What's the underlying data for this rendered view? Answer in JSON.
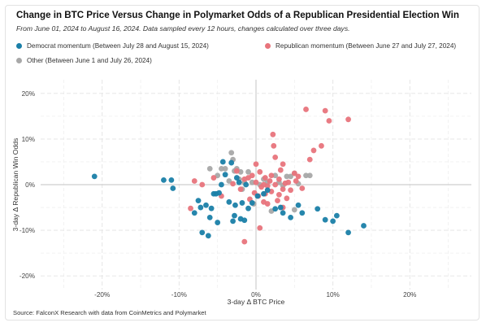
{
  "chart_data": {
    "type": "scatter",
    "title": "Change in BTC Price Versus Change in Polymarket Odds of a Republican Presidential Election Win",
    "subtitle": "From June 01, 2024 to August 16, 2024. Data sampled every 12 hours, changes calculated over three days.",
    "xlabel": "3-day Δ BTC Price",
    "ylabel": "3-day Δ Republican Win Odds",
    "source": "Source: FalconX Research with data from CoinMetrics and Polymarket",
    "xlim": [
      -28,
      28
    ],
    "ylim": [
      -23,
      23
    ],
    "x_ticks": [
      -20,
      -10,
      0,
      10,
      20
    ],
    "y_ticks": [
      -20,
      -10,
      0,
      10,
      20
    ],
    "x_tick_labels": [
      "-20%",
      "-10%",
      "0%",
      "10%",
      "20%"
    ],
    "y_tick_labels": [
      "-20%",
      "-10%",
      "0%",
      "10%",
      "20%"
    ],
    "grid": true,
    "legend_position": "top",
    "series": [
      {
        "name": "Democrat momentum (Between July 28 and August 15, 2024)",
        "color": "#1a7fa8",
        "points": [
          [
            -21,
            1.8
          ],
          [
            -12,
            1
          ],
          [
            -11,
            1
          ],
          [
            -10.8,
            -0.8
          ],
          [
            -8,
            -6.2
          ],
          [
            -7.5,
            -3.5
          ],
          [
            -7.2,
            -5
          ],
          [
            -7,
            -10.5
          ],
          [
            -6.5,
            -4.5
          ],
          [
            -6.2,
            -11.2
          ],
          [
            -6,
            -7.2
          ],
          [
            -5.8,
            -5.2
          ],
          [
            -5.5,
            -2
          ],
          [
            -5.2,
            -2
          ],
          [
            -5,
            -8.3
          ],
          [
            -4.8,
            -1.8
          ],
          [
            -4.5,
            0
          ],
          [
            -4.3,
            5
          ],
          [
            -4,
            2.2
          ],
          [
            -3.5,
            -3.8
          ],
          [
            -3.2,
            4.8
          ],
          [
            -3,
            -8
          ],
          [
            -2.8,
            -6.8
          ],
          [
            -2.7,
            -4.5
          ],
          [
            -2.5,
            1.5
          ],
          [
            -2.2,
            0.5
          ],
          [
            -2,
            -7.5
          ],
          [
            -1.8,
            -4
          ],
          [
            -1.5,
            -7.8
          ],
          [
            -1.3,
            0
          ],
          [
            -1,
            -5.2
          ],
          [
            -0.5,
            -4
          ],
          [
            0.2,
            -2.5
          ],
          [
            1,
            -2
          ],
          [
            1.5,
            -1.2
          ],
          [
            2.5,
            -5.3
          ],
          [
            3.2,
            -5
          ],
          [
            3.5,
            -6.2
          ],
          [
            4.5,
            -7.2
          ],
          [
            5.5,
            -4.5
          ],
          [
            6,
            -6.2
          ],
          [
            8,
            -5.3
          ],
          [
            9,
            -7.7
          ],
          [
            10,
            -8
          ],
          [
            10.5,
            -6.8
          ],
          [
            12,
            -10.5
          ],
          [
            14,
            -9
          ]
        ]
      },
      {
        "name": "Republican momentum (Between June 27 and July 27, 2024)",
        "color": "#e8747c",
        "points": [
          [
            -8,
            0.8
          ],
          [
            -7,
            0
          ],
          [
            -5.5,
            1.5
          ],
          [
            -8.5,
            -5.2
          ],
          [
            -4.5,
            -2.5
          ],
          [
            -3,
            0.2
          ],
          [
            -2.5,
            3
          ],
          [
            -2,
            -1
          ],
          [
            -1.5,
            1.2
          ],
          [
            -1,
            1.5
          ],
          [
            -0.5,
            2
          ],
          [
            -0.2,
            -1.8
          ],
          [
            0,
            0.5
          ],
          [
            0,
            4.5
          ],
          [
            0.3,
            -2.5
          ],
          [
            0.5,
            2.8
          ],
          [
            0.7,
            -0.5
          ],
          [
            1,
            0
          ],
          [
            1.2,
            1.5
          ],
          [
            1.5,
            -0.3
          ],
          [
            1.5,
            -4.2
          ],
          [
            1.8,
            0.8
          ],
          [
            2,
            -1.5
          ],
          [
            2,
            2
          ],
          [
            2.2,
            11
          ],
          [
            2.3,
            8.5
          ],
          [
            2.5,
            6
          ],
          [
            2.5,
            0
          ],
          [
            2.8,
            -3.5
          ],
          [
            3,
            1.2
          ],
          [
            3,
            -2.2
          ],
          [
            3.2,
            3.2
          ],
          [
            3.5,
            -1
          ],
          [
            3.5,
            4.5
          ],
          [
            3.8,
            0.3
          ],
          [
            4,
            -3
          ],
          [
            4.2,
            0.5
          ],
          [
            4.5,
            -1.2
          ],
          [
            5,
            2.5
          ],
          [
            5.2,
            0.8
          ],
          [
            5.5,
            1.8
          ],
          [
            6,
            -0.8
          ],
          [
            6.5,
            16.5
          ],
          [
            7,
            5.5
          ],
          [
            7.5,
            7.5
          ],
          [
            8.5,
            8.5
          ],
          [
            9,
            16.2
          ],
          [
            9.5,
            14
          ],
          [
            12,
            14.3
          ],
          [
            -1.5,
            -12.5
          ],
          [
            0.5,
            -9.5
          ],
          [
            1,
            -3.8
          ],
          [
            1.2,
            -2
          ],
          [
            -0.8,
            -3.2
          ],
          [
            3.5,
            -5
          ]
        ]
      },
      {
        "name": "Other (Between June 1 and July 26, 2024)",
        "color": "#a8a8a8",
        "points": [
          [
            -6,
            3.5
          ],
          [
            -5,
            2
          ],
          [
            -4.5,
            3.5
          ],
          [
            -4,
            3.5
          ],
          [
            -3.2,
            7
          ],
          [
            -3,
            5.5
          ],
          [
            -2.8,
            3
          ],
          [
            -2.5,
            3.5
          ],
          [
            -2.2,
            1.2
          ],
          [
            -2,
            2.8
          ],
          [
            -1.8,
            -1
          ],
          [
            -1.5,
            0.5
          ],
          [
            -1,
            2.8
          ],
          [
            -0.5,
            0.5
          ],
          [
            0.5,
            0
          ],
          [
            1,
            1.2
          ],
          [
            1.5,
            0.5
          ],
          [
            2.5,
            2
          ],
          [
            3,
            0.5
          ],
          [
            3.5,
            -0.2
          ],
          [
            4,
            1.8
          ],
          [
            4.5,
            1.8
          ],
          [
            5,
            2.5
          ],
          [
            5.5,
            0.2
          ],
          [
            5,
            -5.5
          ],
          [
            6.5,
            2
          ],
          [
            7,
            2
          ],
          [
            2,
            -5.8
          ],
          [
            -0.3,
            -4.2
          ],
          [
            -3.5,
            0.8
          ]
        ]
      }
    ]
  }
}
